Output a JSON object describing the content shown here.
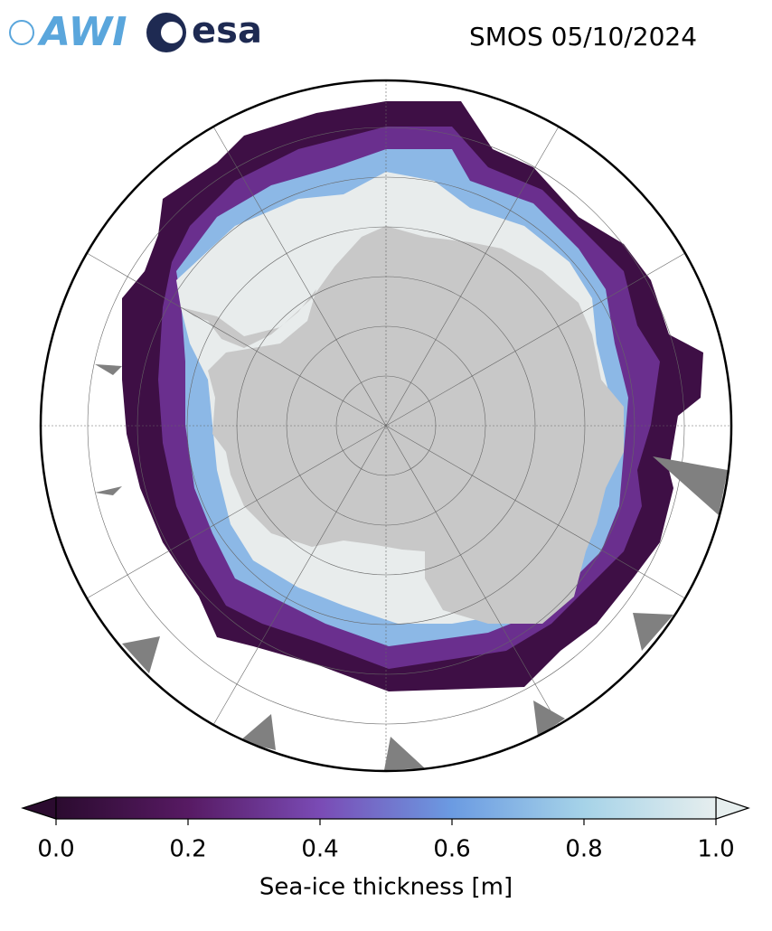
{
  "logos": {
    "awi": "AWI",
    "esa": "esa"
  },
  "title": "SMOS 05/10/2024",
  "colorbar": {
    "label": "Sea-ice thickness [m]",
    "lim": [
      0,
      1
    ],
    "ticks": [
      {
        "value": 0,
        "label": "0.0"
      },
      {
        "value": 0.2,
        "label": "0.2"
      },
      {
        "value": 0.4,
        "label": "0.4"
      },
      {
        "value": 0.6,
        "label": "0.6"
      },
      {
        "value": 0.8,
        "label": "0.8"
      },
      {
        "value": 1,
        "label": "1.0"
      }
    ]
  }
}
